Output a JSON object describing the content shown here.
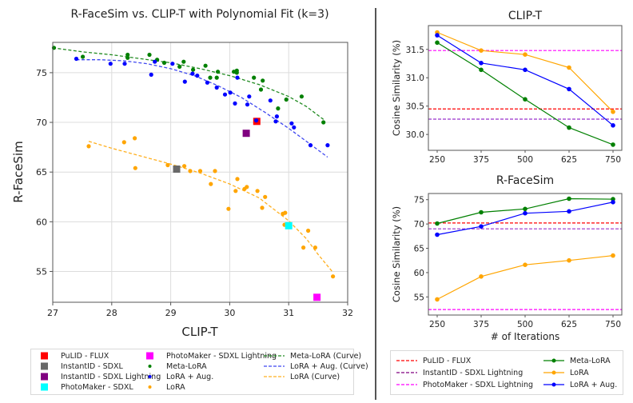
{
  "chart_data": [
    {
      "type": "scatter",
      "title": "R-FaceSim vs. CLIP-T with Polynomial Fit (k=3)",
      "xlabel": "CLIP-T",
      "ylabel": "R-FaceSim",
      "xlim": [
        27,
        32
      ],
      "ylim": [
        51.9,
        78.05
      ],
      "xticks": [
        27,
        28,
        29,
        30,
        31,
        32
      ],
      "yticks": [
        55,
        60,
        65,
        70,
        75
      ],
      "grid": true,
      "legend_position": "bottom",
      "series": [
        {
          "name": "Meta-LoRA",
          "kind": "points",
          "color": "#008000",
          "points": [
            [
              27.02,
              77.5
            ],
            [
              27.51,
              76.6
            ],
            [
              28.27,
              76.8
            ],
            [
              28.27,
              76.5
            ],
            [
              28.64,
              76.8
            ],
            [
              28.77,
              76.3
            ],
            [
              28.89,
              76.0
            ],
            [
              29.15,
              75.6
            ],
            [
              29.22,
              76.1
            ],
            [
              29.38,
              75.3
            ],
            [
              29.59,
              75.7
            ],
            [
              29.67,
              74.5
            ],
            [
              29.78,
              74.5
            ],
            [
              29.8,
              75.1
            ],
            [
              30.07,
              75.1
            ],
            [
              30.12,
              75.2
            ],
            [
              30.12,
              75.0
            ],
            [
              30.41,
              74.5
            ],
            [
              30.56,
              74.2
            ],
            [
              30.53,
              73.3
            ],
            [
              30.82,
              71.4
            ],
            [
              30.96,
              72.3
            ],
            [
              31.22,
              72.6
            ],
            [
              31.59,
              70.0
            ]
          ]
        },
        {
          "name": "LoRA + Aug.",
          "kind": "points",
          "color": "#0000ff",
          "points": [
            [
              27.4,
              76.4
            ],
            [
              27.98,
              75.9
            ],
            [
              28.22,
              75.9
            ],
            [
              28.67,
              74.8
            ],
            [
              28.73,
              76.1
            ],
            [
              29.03,
              75.9
            ],
            [
              29.24,
              74.1
            ],
            [
              29.37,
              74.9
            ],
            [
              29.45,
              74.7
            ],
            [
              29.62,
              74.0
            ],
            [
              29.78,
              73.5
            ],
            [
              29.92,
              72.8
            ],
            [
              30.01,
              73.0
            ],
            [
              30.09,
              71.9
            ],
            [
              30.13,
              74.5
            ],
            [
              30.3,
              71.8
            ],
            [
              30.33,
              72.6
            ],
            [
              30.45,
              70.2
            ],
            [
              30.69,
              72.2
            ],
            [
              30.78,
              70.1
            ],
            [
              30.8,
              70.6
            ],
            [
              31.05,
              69.9
            ],
            [
              31.09,
              69.5
            ],
            [
              31.37,
              67.7
            ],
            [
              31.66,
              67.7
            ]
          ]
        },
        {
          "name": "LoRA",
          "kind": "points",
          "color": "#ffa500",
          "points": [
            [
              27.61,
              67.6
            ],
            [
              28.21,
              68.0
            ],
            [
              28.39,
              68.4
            ],
            [
              28.4,
              65.4
            ],
            [
              28.95,
              65.7
            ],
            [
              29.23,
              65.6
            ],
            [
              29.33,
              65.1
            ],
            [
              29.5,
              65.1
            ],
            [
              29.68,
              63.8
            ],
            [
              29.75,
              65.1
            ],
            [
              29.98,
              61.3
            ],
            [
              30.1,
              63.1
            ],
            [
              30.13,
              64.3
            ],
            [
              30.25,
              63.3
            ],
            [
              30.29,
              63.5
            ],
            [
              30.47,
              63.1
            ],
            [
              30.55,
              61.4
            ],
            [
              30.6,
              62.5
            ],
            [
              30.9,
              60.8
            ],
            [
              30.94,
              60.9
            ],
            [
              30.93,
              59.7
            ],
            [
              31.25,
              57.4
            ],
            [
              31.33,
              59.1
            ],
            [
              31.45,
              57.4
            ],
            [
              31.75,
              54.5
            ]
          ]
        },
        {
          "name": "Meta-LoRA (Curve)",
          "kind": "curve",
          "color": "#228b22",
          "points": [
            [
              27.0,
              77.5
            ],
            [
              27.5,
              77.1
            ],
            [
              28.0,
              76.8
            ],
            [
              28.5,
              76.4
            ],
            [
              29.0,
              76.0
            ],
            [
              29.5,
              75.4
            ],
            [
              30.0,
              74.7
            ],
            [
              30.5,
              73.8
            ],
            [
              31.0,
              72.6
            ],
            [
              31.3,
              71.6
            ],
            [
              31.59,
              70.3
            ]
          ]
        },
        {
          "name": "LoRA + Aug. (Curve)",
          "kind": "curve",
          "color": "#3f48f0",
          "points": [
            [
              27.4,
              76.3
            ],
            [
              27.8,
              76.3
            ],
            [
              28.2,
              76.2
            ],
            [
              28.6,
              75.9
            ],
            [
              29.0,
              75.4
            ],
            [
              29.4,
              74.7
            ],
            [
              29.8,
              73.7
            ],
            [
              30.2,
              72.5
            ],
            [
              30.6,
              71.0
            ],
            [
              31.0,
              69.4
            ],
            [
              31.3,
              68.1
            ],
            [
              31.66,
              66.5
            ]
          ]
        },
        {
          "name": "LoRA (Curve)",
          "kind": "curve",
          "color": "#ffb020",
          "points": [
            [
              27.61,
              68.1
            ],
            [
              28.0,
              67.4
            ],
            [
              28.5,
              66.6
            ],
            [
              29.0,
              65.8
            ],
            [
              29.5,
              64.9
            ],
            [
              30.0,
              63.8
            ],
            [
              30.5,
              62.4
            ],
            [
              31.0,
              60.1
            ],
            [
              31.3,
              58.3
            ],
            [
              31.5,
              56.7
            ],
            [
              31.75,
              54.9
            ]
          ]
        }
      ],
      "baselines": [
        {
          "name": "PuLID - FLUX",
          "color": "#ff0000",
          "x": 30.46,
          "y": 70.1
        },
        {
          "name": "InstantID - SDXL",
          "color": "#696969",
          "x": 29.1,
          "y": 65.3
        },
        {
          "name": "InstantID - SDXL Lightning",
          "color": "#800080",
          "x": 30.28,
          "y": 68.9
        },
        {
          "name": "PhotoMaker - SDXL",
          "color": "#00ffff",
          "x": 31.0,
          "y": 59.6
        },
        {
          "name": "PhotoMaker - SDXL Lightning",
          "color": "#ff00ff",
          "x": 31.48,
          "y": 52.4
        }
      ]
    },
    {
      "type": "line",
      "title": "CLIP-T",
      "xlabel": "",
      "ylabel": "Cosine Similarity (%)",
      "categories": [
        "250",
        "375",
        "500",
        "625",
        "750"
      ],
      "ylim": [
        29.72,
        31.92
      ],
      "yticks": [
        "30.0",
        "30.5",
        "31.0",
        "31.5"
      ],
      "grid": false,
      "series": [
        {
          "name": "Meta-LoRA",
          "color": "#008000",
          "values": [
            31.62,
            31.14,
            30.62,
            30.12,
            29.82
          ]
        },
        {
          "name": "LoRA",
          "color": "#ffa500",
          "values": [
            31.8,
            31.48,
            31.41,
            31.18,
            30.4
          ]
        },
        {
          "name": "LoRA + Aug.",
          "color": "#0000ff",
          "values": [
            31.75,
            31.26,
            31.14,
            30.8,
            30.16
          ]
        }
      ],
      "hlines": [
        {
          "name": "PuLID - FLUX",
          "color": "#ff0000",
          "value": 30.45
        },
        {
          "name": "InstantID - SDXL Lightning",
          "color": "#9932cc",
          "value": 30.27
        },
        {
          "name": "PhotoMaker - SDXL Lightning",
          "color": "#ff00ff",
          "value": 31.48
        }
      ]
    },
    {
      "type": "line",
      "title": "R-FaceSim",
      "xlabel": "# of Iterations",
      "ylabel": "Cosine Similarity (%)",
      "categories": [
        "250",
        "375",
        "500",
        "625",
        "750"
      ],
      "ylim": [
        51.27,
        76.27
      ],
      "yticks": [
        "55",
        "60",
        "65",
        "70",
        "75"
      ],
      "grid": false,
      "series": [
        {
          "name": "Meta-LoRA",
          "color": "#008000",
          "values": [
            70.1,
            72.4,
            73.1,
            75.2,
            75.1
          ]
        },
        {
          "name": "LoRA",
          "color": "#ffa500",
          "values": [
            54.5,
            59.2,
            61.6,
            62.5,
            63.5
          ]
        },
        {
          "name": "LoRA + Aug.",
          "color": "#0000ff",
          "values": [
            67.8,
            69.5,
            72.2,
            72.6,
            74.5
          ]
        }
      ],
      "hlines": [
        {
          "name": "PuLID - FLUX",
          "color": "#ff0000",
          "value": 70.2
        },
        {
          "name": "InstantID - SDXL Lightning",
          "color": "#9932cc",
          "value": 69.0
        },
        {
          "name": "PhotoMaker - SDXL Lightning",
          "color": "#ff00ff",
          "value": 52.4
        }
      ]
    }
  ],
  "left_legend": {
    "items": [
      {
        "label": "PuLID - FLUX",
        "type": "square",
        "color": "#ff0000"
      },
      {
        "label": "InstantID - SDXL",
        "type": "square",
        "color": "#696969"
      },
      {
        "label": "InstantID - SDXL Lightning",
        "type": "square",
        "color": "#800080"
      },
      {
        "label": "PhotoMaker - SDXL",
        "type": "square",
        "color": "#00ffff"
      },
      {
        "label": "PhotoMaker - SDXL Lightning",
        "type": "square",
        "color": "#ff00ff"
      },
      {
        "label": "Meta-LoRA",
        "type": "dot",
        "color": "#008000"
      },
      {
        "label": "LoRA + Aug.",
        "type": "dot",
        "color": "#0000ff"
      },
      {
        "label": "LoRA",
        "type": "dot",
        "color": "#ffa500"
      },
      {
        "label": "Meta-LoRA (Curve)",
        "type": "dash",
        "color": "#228b22"
      },
      {
        "label": "LoRA + Aug. (Curve)",
        "type": "dash",
        "color": "#3f48f0"
      },
      {
        "label": "LoRA (Curve)",
        "type": "dash",
        "color": "#ffb020"
      }
    ]
  },
  "right_legend": {
    "items": [
      {
        "label": "PuLID - FLUX",
        "type": "dash",
        "color": "#ff0000"
      },
      {
        "label": "InstantID - SDXL Lightning",
        "type": "dash",
        "color": "#800080"
      },
      {
        "label": "PhotoMaker - SDXL Lightning",
        "type": "dash",
        "color": "#ff00ff"
      },
      {
        "label": "Meta-LoRA",
        "type": "line-marker",
        "color": "#008000"
      },
      {
        "label": "LoRA",
        "type": "line-marker",
        "color": "#ffa500"
      },
      {
        "label": "LoRA + Aug.",
        "type": "line-marker",
        "color": "#0000ff"
      }
    ]
  }
}
